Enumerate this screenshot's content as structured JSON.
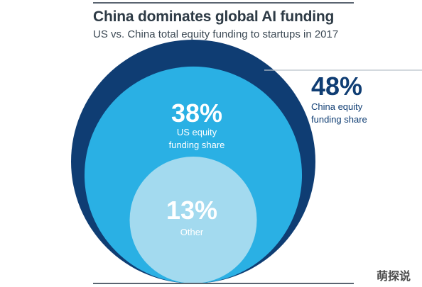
{
  "header": {
    "title": "China dominates global AI funding",
    "subtitle": "US vs. China total equity funding to startups in 2017"
  },
  "watermark": "萌探说",
  "chart_data": {
    "type": "nested-circles",
    "slices": [
      {
        "label": "China equity funding share",
        "value": 48,
        "display": "48%",
        "label_lines": [
          "China equity",
          "funding share"
        ],
        "color": "#0f3d73"
      },
      {
        "label": "US equity funding share",
        "value": 38,
        "display": "38%",
        "label_lines": [
          "US equity",
          "funding share"
        ],
        "color": "#2ab0e4"
      },
      {
        "label": "Other",
        "value": 13,
        "display": "13%",
        "label_lines": [
          "Other"
        ],
        "color": "#a3daef"
      }
    ]
  }
}
